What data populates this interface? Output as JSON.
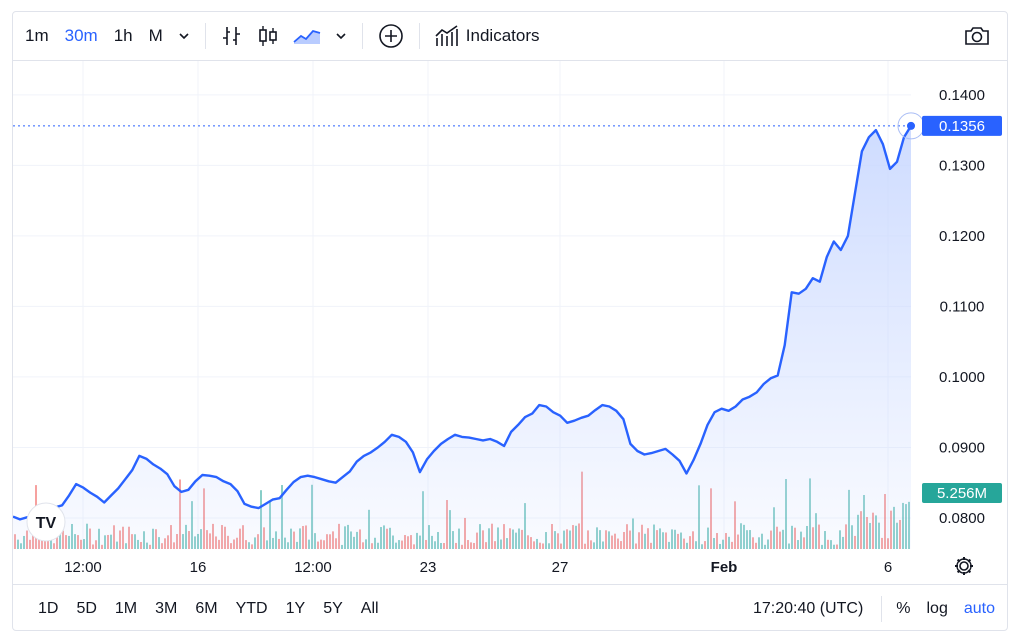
{
  "toolbar": {
    "intervals": [
      "1m",
      "30m",
      "1h",
      "M"
    ],
    "active_interval": "30m",
    "indicators_label": "Indicators",
    "icons": [
      "chevron-down-icon",
      "bar-chart-icon",
      "candles-icon",
      "area-chart-icon",
      "chevron-down-icon",
      "plus-circle-icon",
      "indicators-icon",
      "camera-icon"
    ]
  },
  "bottom": {
    "ranges": [
      "1D",
      "5D",
      "1M",
      "3M",
      "6M",
      "YTD",
      "1Y",
      "5Y",
      "All"
    ],
    "clock": "17:20:40 (UTC)",
    "options": [
      "%",
      "log",
      "auto"
    ],
    "active_option": "auto"
  },
  "colors": {
    "line": "#2962ff",
    "area_top": "#c9d8ff",
    "price_label_bg": "#2962ff",
    "volume_label_bg": "#26a69a",
    "volume_up": "#26a69a",
    "volume_down": "#ef5350"
  },
  "chart_data": {
    "type": "area",
    "yticks": [
      "0.1400",
      "0.1300",
      "0.1200",
      "0.1100",
      "0.1000",
      "0.0900",
      "0.0800"
    ],
    "ylim": [
      0.0756,
      0.1448
    ],
    "xticks": [
      "12:00",
      "16",
      "12:00",
      "23",
      "27",
      "Feb",
      "6"
    ],
    "current_price_label": "0.1356",
    "current_price": 0.1356,
    "volume_label": "5.256M",
    "logo": "TV",
    "series": [
      {
        "values": [
          0.0802,
          0.0798,
          0.0801,
          0.0797,
          0.0805,
          0.0809,
          0.0815,
          0.0818,
          0.0832,
          0.0848,
          0.0843,
          0.0836,
          0.083,
          0.0822,
          0.0832,
          0.0842,
          0.0855,
          0.0868,
          0.0888,
          0.0884,
          0.0876,
          0.087,
          0.0862,
          0.0845,
          0.0837,
          0.084,
          0.0852,
          0.0861,
          0.086,
          0.0858,
          0.0852,
          0.0848,
          0.0838,
          0.082,
          0.0816,
          0.0814,
          0.082,
          0.0826,
          0.0828,
          0.084,
          0.0851,
          0.0858,
          0.086,
          0.0858,
          0.0855,
          0.0852,
          0.085,
          0.0858,
          0.0866,
          0.088,
          0.0888,
          0.0893,
          0.09,
          0.0908,
          0.0918,
          0.0915,
          0.0908,
          0.0893,
          0.0865,
          0.0883,
          0.0895,
          0.0905,
          0.0912,
          0.0918,
          0.0915,
          0.0914,
          0.0912,
          0.091,
          0.0912,
          0.0908,
          0.0902,
          0.0922,
          0.0932,
          0.0943,
          0.0948,
          0.096,
          0.0958,
          0.095,
          0.0945,
          0.0935,
          0.0938,
          0.0942,
          0.0945,
          0.0953,
          0.096,
          0.0958,
          0.0952,
          0.094,
          0.0905,
          0.0895,
          0.089,
          0.0892,
          0.0895,
          0.0898,
          0.089,
          0.0881,
          0.0863,
          0.0882,
          0.0905,
          0.0932,
          0.095,
          0.0955,
          0.0952,
          0.0958,
          0.0968,
          0.0972,
          0.0978,
          0.099,
          0.0998,
          0.1002,
          0.1045,
          0.112,
          0.1118,
          0.1125,
          0.114,
          0.1135,
          0.117,
          0.1192,
          0.118,
          0.12,
          0.126,
          0.132,
          0.134,
          0.135,
          0.133,
          0.1295,
          0.1305,
          0.134,
          0.1356
        ]
      }
    ]
  }
}
